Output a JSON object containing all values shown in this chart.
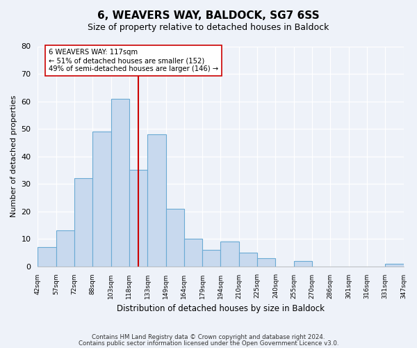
{
  "title": "6, WEAVERS WAY, BALDOCK, SG7 6SS",
  "subtitle": "Size of property relative to detached houses in Baldock",
  "xlabel": "Distribution of detached houses by size in Baldock",
  "ylabel": "Number of detached properties",
  "bin_labels": [
    "42sqm",
    "57sqm",
    "72sqm",
    "88sqm",
    "103sqm",
    "118sqm",
    "133sqm",
    "149sqm",
    "164sqm",
    "179sqm",
    "194sqm",
    "210sqm",
    "225sqm",
    "240sqm",
    "255sqm",
    "270sqm",
    "286sqm",
    "301sqm",
    "316sqm",
    "331sqm",
    "347sqm"
  ],
  "bar_values": [
    7,
    13,
    32,
    49,
    61,
    35,
    48,
    21,
    10,
    6,
    9,
    5,
    3,
    0,
    2,
    0,
    0,
    0,
    0,
    1
  ],
  "bar_color": "#c8d9ee",
  "bar_edge_color": "#6aaad4",
  "vline_color": "#cc0000",
  "vline_x": 5.5,
  "annotation_title": "6 WEAVERS WAY: 117sqm",
  "annotation_line1": "← 51% of detached houses are smaller (152)",
  "annotation_line2": "49% of semi-detached houses are larger (146) →",
  "annotation_box_color": "#ffffff",
  "annotation_box_edge_color": "#cc0000",
  "ylim": [
    0,
    80
  ],
  "yticks": [
    0,
    10,
    20,
    30,
    40,
    50,
    60,
    70,
    80
  ],
  "footer1": "Contains HM Land Registry data © Crown copyright and database right 2024.",
  "footer2": "Contains public sector information licensed under the Open Government Licence v3.0.",
  "background_color": "#eef2f9"
}
